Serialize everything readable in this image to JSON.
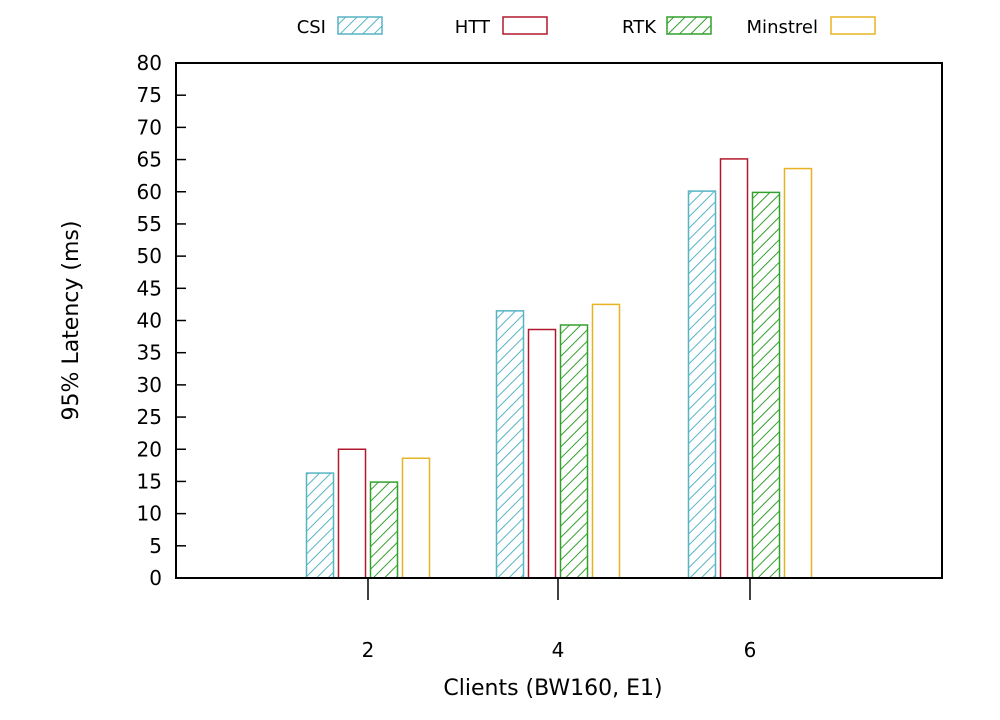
{
  "chart_data": {
    "type": "bar",
    "xlabel": "Clients (BW160, E1)",
    "ylabel": "95% Latency (ms)",
    "ylim": [
      0,
      80
    ],
    "yticks": [
      0,
      5,
      10,
      15,
      20,
      25,
      30,
      35,
      40,
      45,
      50,
      55,
      60,
      65,
      70,
      75,
      80
    ],
    "categories": [
      "2",
      "4",
      "6"
    ],
    "legend_position": "top",
    "grid": false,
    "series": [
      {
        "name": "CSI",
        "values": [
          16.3,
          41.5,
          60.1
        ],
        "color": "#56b4c4",
        "pattern": "hatch"
      },
      {
        "name": "HTT",
        "values": [
          20.0,
          38.6,
          65.1
        ],
        "color": "#b2182b",
        "pattern": "outline"
      },
      {
        "name": "RTK",
        "values": [
          14.9,
          39.3,
          59.9
        ],
        "color": "#33a02c",
        "pattern": "hatch"
      },
      {
        "name": "Minstrel",
        "values": [
          18.6,
          42.5,
          63.6
        ],
        "color": "#e6b422",
        "pattern": "outline"
      }
    ]
  }
}
